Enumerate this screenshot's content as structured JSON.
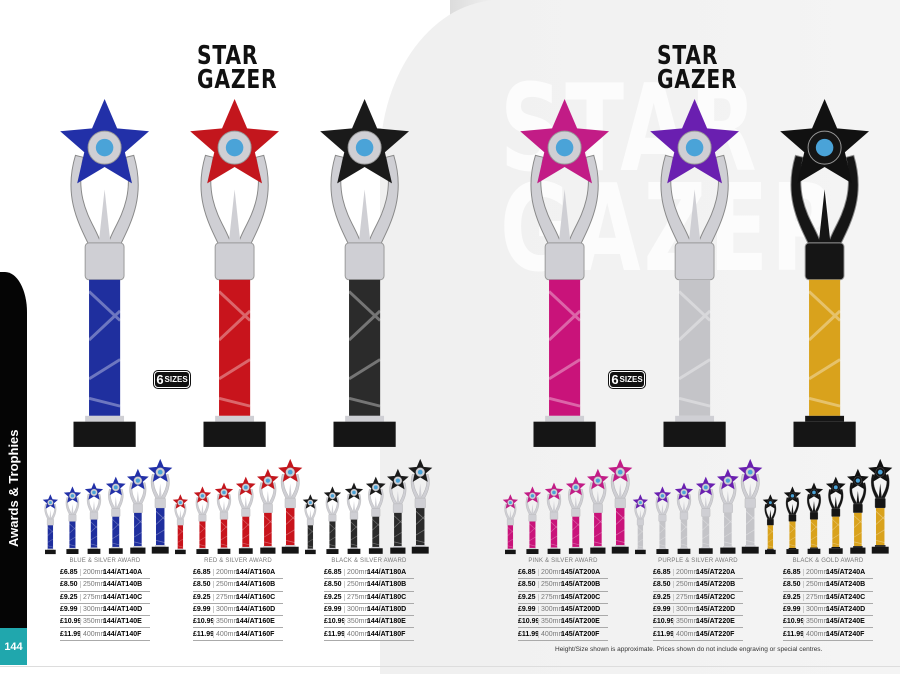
{
  "section_tab": "Awards & Trophies",
  "page_number": "144",
  "brand_logo": "STAR GAZER",
  "sizes_badge": {
    "count": "6",
    "label": "SIZES"
  },
  "footnote": "Height/Size shown is approximate. Prices shown do not include engraving or special centres.",
  "colors": {
    "tab": "#050505",
    "page_number_bg": "#20a7ad"
  },
  "groups": [
    {
      "title": "BLUE & SILVER AWARD",
      "column_color": "#1f2f9e",
      "star_color": "#2230a8",
      "arm_color": "#cfcfd4",
      "rows": [
        [
          "£6.85",
          "200mm",
          "144/AT140A"
        ],
        [
          "£8.50",
          "250mm",
          "144/AT140B"
        ],
        [
          "£9.25",
          "275mm",
          "144/AT140C"
        ],
        [
          "£9.99",
          "300mm",
          "144/AT140D"
        ],
        [
          "£10.99",
          "350mm",
          "144/AT140E"
        ],
        [
          "£11.99",
          "400mm",
          "144/AT140F"
        ]
      ]
    },
    {
      "title": "RED & SILVER AWARD",
      "column_color": "#c8141c",
      "star_color": "#c3161d",
      "arm_color": "#cfcfd4",
      "rows": [
        [
          "£6.85",
          "200mm",
          "144/AT160A"
        ],
        [
          "£8.50",
          "250mm",
          "144/AT160B"
        ],
        [
          "£9.25",
          "275mm",
          "144/AT160C"
        ],
        [
          "£9.99",
          "300mm",
          "144/AT160D"
        ],
        [
          "£10.99",
          "350mm",
          "144/AT160E"
        ],
        [
          "£11.99",
          "400mm",
          "144/AT160F"
        ]
      ]
    },
    {
      "title": "BLACK & SILVER AWARD",
      "column_color": "#2b2b2b",
      "star_color": "#1a1a1a",
      "arm_color": "#cfcfd4",
      "rows": [
        [
          "£6.85",
          "200mm",
          "144/AT180A"
        ],
        [
          "£8.50",
          "250mm",
          "144/AT180B"
        ],
        [
          "£9.25",
          "275mm",
          "144/AT180C"
        ],
        [
          "£9.99",
          "300mm",
          "144/AT180D"
        ],
        [
          "£10.99",
          "350mm",
          "144/AT180E"
        ],
        [
          "£11.99",
          "400mm",
          "144/AT180F"
        ]
      ]
    },
    {
      "title": "PINK & SILVER AWARD",
      "column_color": "#c9137a",
      "star_color": "#c21c86",
      "arm_color": "#cfcfd4",
      "rows": [
        [
          "£6.85",
          "200mm",
          "145/AT200A"
        ],
        [
          "£8.50",
          "250mm",
          "145/AT200B"
        ],
        [
          "£9.25",
          "275mm",
          "145/AT200C"
        ],
        [
          "£9.99",
          "300mm",
          "145/AT200D"
        ],
        [
          "£10.99",
          "350mm",
          "145/AT200E"
        ],
        [
          "£11.99",
          "400mm",
          "145/AT200F"
        ]
      ]
    },
    {
      "title": "PURPLE & SILVER AWARD",
      "column_color": "#c4c4c8",
      "star_color": "#6a1fb0",
      "arm_color": "#cfcfd4",
      "rows": [
        [
          "£6.85",
          "200mm",
          "145/AT220A"
        ],
        [
          "£8.50",
          "250mm",
          "145/AT220B"
        ],
        [
          "£9.25",
          "275mm",
          "145/AT220C"
        ],
        [
          "£9.99",
          "300mm",
          "145/AT220D"
        ],
        [
          "£10.99",
          "350mm",
          "145/AT220E"
        ],
        [
          "£11.99",
          "400mm",
          "145/AT220F"
        ]
      ]
    },
    {
      "title": "BLACK & GOLD AWARD",
      "column_color": "#d9a21c",
      "star_color": "#111111",
      "arm_color": "#151515",
      "rows": [
        [
          "£6.85",
          "200mm",
          "145/AT240A"
        ],
        [
          "£8.50",
          "250mm",
          "145/AT240B"
        ],
        [
          "£9.25",
          "275mm",
          "145/AT240C"
        ],
        [
          "£9.99",
          "300mm",
          "145/AT240D"
        ],
        [
          "£10.99",
          "350mm",
          "145/AT240E"
        ],
        [
          "£11.99",
          "400mm",
          "145/AT240F"
        ]
      ]
    }
  ]
}
